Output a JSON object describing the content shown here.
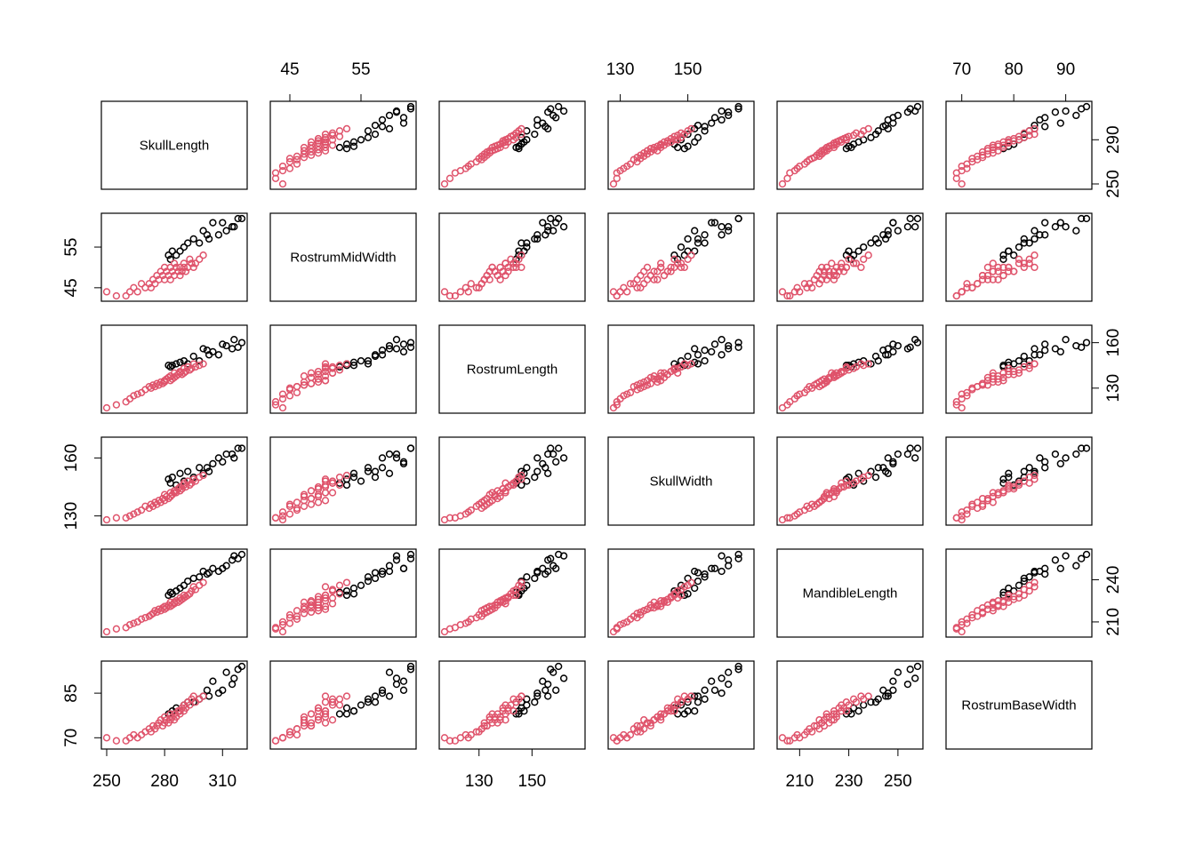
{
  "chart_data": {
    "type": "scatter",
    "title": "",
    "variables": [
      "SkullLength",
      "RostrumMidWidth",
      "RostrumLength",
      "SkullWidth",
      "MandibleLength",
      "RostrumBaseWidth"
    ],
    "ranges": [
      [
        250,
        320
      ],
      [
        43,
        62
      ],
      [
        117,
        168
      ],
      [
        128,
        168
      ],
      [
        203,
        258
      ],
      [
        68,
        94
      ]
    ],
    "ticks": [
      [
        250,
        280,
        310
      ],
      [
        45,
        55
      ],
      [
        130,
        150
      ],
      [
        130,
        160
      ],
      [
        210,
        240
      ],
      [
        70,
        85
      ]
    ],
    "top_ticks": {
      "1": [
        45,
        55
      ],
      "3": [
        130,
        150
      ],
      "5": [
        70,
        80,
        90
      ]
    },
    "bottom_ticks": {
      "0": [
        250,
        280,
        310
      ],
      "2": [
        130,
        150
      ],
      "4": [
        210,
        230,
        250
      ]
    },
    "left_ticks": {
      "1": [
        45,
        55
      ],
      "3": [
        130,
        160
      ],
      "5": [
        70,
        85
      ]
    },
    "right_ticks": {
      "0": [
        250,
        290
      ],
      "2": [
        130,
        160
      ],
      "4": [
        210,
        240
      ]
    },
    "series": [
      {
        "name": "",
        "color": "#000000",
        "points": [
          [
            320,
            62,
            160,
            165,
            258,
            94
          ],
          [
            318,
            62,
            157,
            165,
            255,
            93
          ],
          [
            316,
            60,
            162,
            160,
            257,
            90
          ],
          [
            315,
            60,
            156,
            162,
            254,
            88
          ],
          [
            312,
            59,
            158,
            162,
            250,
            92
          ],
          [
            310,
            61,
            159,
            158,
            248,
            86
          ],
          [
            308,
            58,
            152,
            160,
            246,
            85
          ],
          [
            305,
            61,
            154,
            157,
            248,
            89
          ],
          [
            303,
            57,
            152,
            153,
            245,
            84
          ],
          [
            302,
            58,
            155,
            155,
            244,
            86
          ],
          [
            300,
            59,
            156,
            152,
            246,
            84
          ],
          [
            298,
            56,
            148,
            155,
            242,
            83
          ],
          [
            295,
            57,
            151,
            150,
            241,
            82
          ],
          [
            292,
            56,
            146,
            153,
            239,
            82
          ],
          [
            290,
            55,
            148,
            148,
            236,
            81
          ],
          [
            288,
            54,
            147,
            152,
            234,
            79
          ],
          [
            286,
            53,
            146,
            146,
            232,
            80
          ],
          [
            284,
            54,
            145,
            150,
            230,
            79
          ],
          [
            283,
            52,
            144,
            147,
            231,
            78
          ],
          [
            282,
            53,
            145,
            149,
            229,
            78
          ]
        ]
      },
      {
        "name": "",
        "color": "#DF536B",
        "points": [
          [
            300,
            53,
            146,
            151,
            238,
            84
          ],
          [
            298,
            52,
            145,
            150,
            236,
            83
          ],
          [
            296,
            51,
            144,
            148,
            233,
            82
          ],
          [
            295,
            50,
            146,
            149,
            235,
            84
          ],
          [
            294,
            51,
            143,
            147,
            232,
            83
          ],
          [
            293,
            52,
            142,
            146,
            230,
            81
          ],
          [
            292,
            50,
            144,
            148,
            229,
            82
          ],
          [
            291,
            49,
            141,
            145,
            228,
            80
          ],
          [
            290,
            51,
            140,
            147,
            227,
            81
          ],
          [
            290,
            50,
            143,
            146,
            229,
            79
          ],
          [
            289,
            49,
            139,
            144,
            226,
            80
          ],
          [
            288,
            50,
            141,
            145,
            227,
            79
          ],
          [
            288,
            48,
            140,
            143,
            225,
            78
          ],
          [
            287,
            49,
            139,
            144,
            224,
            79
          ],
          [
            286,
            50,
            138,
            142,
            225,
            77
          ],
          [
            285,
            48,
            137,
            143,
            224,
            78
          ],
          [
            285,
            51,
            140,
            142,
            223,
            76
          ],
          [
            284,
            49,
            136,
            141,
            222,
            77
          ],
          [
            283,
            47,
            138,
            140,
            224,
            76
          ],
          [
            283,
            50,
            135,
            142,
            221,
            78
          ],
          [
            282,
            48,
            137,
            139,
            222,
            75
          ],
          [
            281,
            49,
            136,
            140,
            220,
            76
          ],
          [
            280,
            47,
            134,
            141,
            221,
            77
          ],
          [
            280,
            50,
            135,
            138,
            219,
            75
          ],
          [
            279,
            48,
            133,
            139,
            220,
            74
          ],
          [
            278,
            49,
            134,
            137,
            218,
            76
          ],
          [
            277,
            47,
            132,
            138,
            219,
            75
          ],
          [
            276,
            48,
            133,
            136,
            217,
            74
          ],
          [
            275,
            46,
            131,
            137,
            218,
            73
          ],
          [
            274,
            47,
            132,
            135,
            216,
            74
          ],
          [
            273,
            45,
            130,
            136,
            215,
            72
          ],
          [
            272,
            46,
            131,
            134,
            214,
            73
          ],
          [
            270,
            45,
            129,
            135,
            213,
            72
          ],
          [
            268,
            46,
            127,
            133,
            212,
            71
          ],
          [
            266,
            44,
            126,
            132,
            210,
            70
          ],
          [
            264,
            45,
            125,
            131,
            209,
            71
          ],
          [
            262,
            44,
            123,
            130,
            208,
            70
          ],
          [
            260,
            43,
            121,
            129,
            206,
            69
          ],
          [
            255,
            43,
            119,
            129,
            205,
            69
          ],
          [
            250,
            44,
            117,
            128,
            203,
            70
          ]
        ]
      }
    ]
  }
}
